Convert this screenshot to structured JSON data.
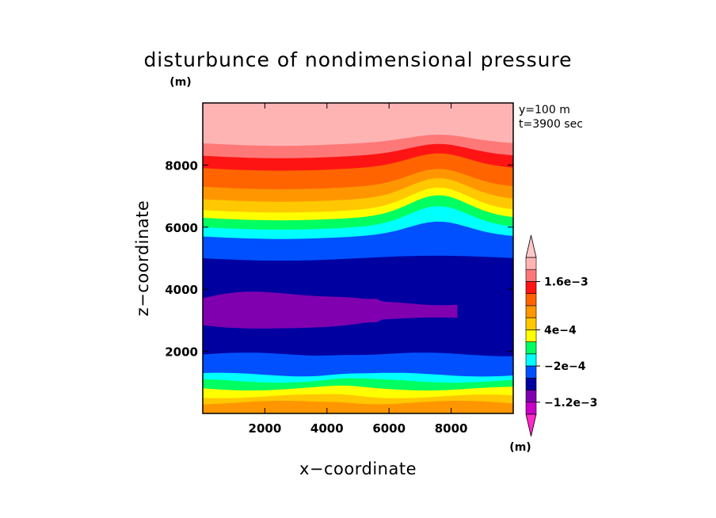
{
  "chart_data": {
    "type": "contour",
    "title": "disturbunce of nondimensional pressure",
    "xlabel": "x−coordinate",
    "ylabel": "z−coordinate",
    "x_unit": "(m)",
    "y_unit": "(m)",
    "annotations": [
      "y=100 m",
      "t=3900 sec"
    ],
    "xlim": [
      0,
      10000
    ],
    "ylim": [
      0,
      10000
    ],
    "x_ticks": [
      2000,
      4000,
      6000,
      8000
    ],
    "y_ticks": [
      2000,
      4000,
      6000,
      8000
    ],
    "x_tick_labels": [
      "2000",
      "4000",
      "6000",
      "8000"
    ],
    "y_tick_labels": [
      "2000",
      "4000",
      "6000",
      "8000"
    ],
    "grid": false,
    "colorbar": {
      "unit": "(m)",
      "labels": [
        {
          "text": "1.6e−3",
          "value": 0.0016
        },
        {
          "text": "4e−4",
          "value": 0.0004
        },
        {
          "text": "−2e−4",
          "value": -0.0002
        },
        {
          "text": "−1.2e−3",
          "value": -0.0012
        }
      ],
      "colors": [
        "#c800c8",
        "#8000b0",
        "#0000a0",
        "#0050ff",
        "#00ffff",
        "#00ff60",
        "#ffff00",
        "#ffc800",
        "#ff9600",
        "#ff6400",
        "#ff1414",
        "#ff7878",
        "#ffb4b4"
      ],
      "extends": "both"
    },
    "bands": [
      {
        "name": "pink",
        "color": "#ffb4b4",
        "base_z": 9500,
        "min_z": 8800,
        "hump": 150
      },
      {
        "name": "salmon",
        "color": "#ff7878",
        "base_z": 8700,
        "min_z": 8400,
        "hump": 200
      },
      {
        "name": "red",
        "color": "#ff1414",
        "base_z": 8300,
        "min_z": 7800,
        "hump": 300
      },
      {
        "name": "dark-orange",
        "color": "#ff6400",
        "base_z": 7900,
        "min_z": 7400,
        "hump": 400
      },
      {
        "name": "orange",
        "color": "#ff9600",
        "base_z": 7300,
        "min_z": 6900,
        "hump": 500
      },
      {
        "name": "light-orange",
        "color": "#ffc800",
        "base_z": 6900,
        "min_z": 6500,
        "hump": 600
      },
      {
        "name": "yellow",
        "color": "#ffff00",
        "base_z": 6550,
        "min_z": 6300,
        "hump": 650
      },
      {
        "name": "green",
        "color": "#00ff60",
        "base_z": 6300,
        "min_z": 6050,
        "hump": 650
      },
      {
        "name": "cyan",
        "color": "#00ffff",
        "base_z": 6000,
        "min_z": 5700,
        "hump": 600
      },
      {
        "name": "blue",
        "color": "#0050ff",
        "base_z": 5700,
        "min_z": 5100,
        "hump": 400
      },
      {
        "name": "navy",
        "color": "#0000a0",
        "base_z": 5000,
        "min_z": 2000,
        "hump": 0
      }
    ],
    "lower_bands": [
      {
        "name": "blue-low",
        "color": "#0050ff",
        "z": 1900
      },
      {
        "name": "cyan-low",
        "color": "#00ffff",
        "z": 1250
      },
      {
        "name": "green-low",
        "color": "#00ff60",
        "z": 1050
      },
      {
        "name": "yellow-low",
        "color": "#ffff00",
        "z": 800
      },
      {
        "name": "light-orange-low",
        "color": "#ffc800",
        "z": 550
      },
      {
        "name": "orange-low",
        "color": "#ff9600",
        "z": 350
      }
    ],
    "min_region": {
      "color": "#8000b0",
      "x_range": [
        0,
        8200
      ],
      "z_range": [
        2700,
        3900
      ]
    }
  }
}
